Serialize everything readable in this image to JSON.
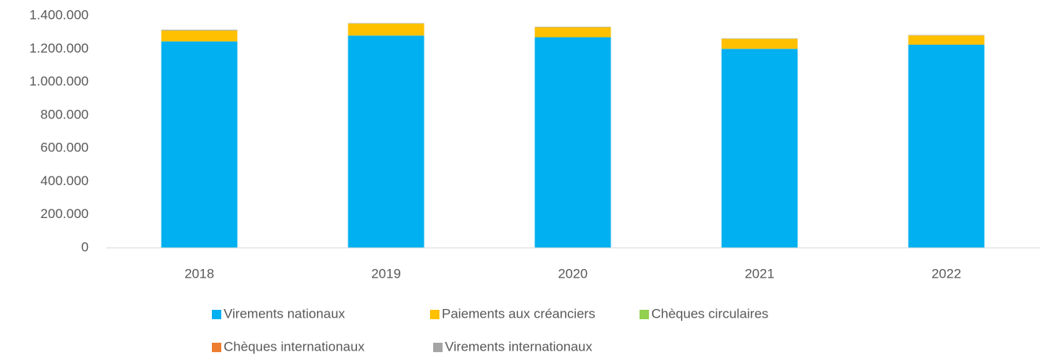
{
  "chart_data": {
    "type": "bar",
    "stacked": true,
    "categories": [
      "2018",
      "2019",
      "2020",
      "2021",
      "2022"
    ],
    "series": [
      {
        "name": "Virements nationaux",
        "color": "#00b0f0",
        "values": [
          1245000,
          1280000,
          1270000,
          1200000,
          1225000
        ]
      },
      {
        "name": "Paiements aux créanciers",
        "color": "#ffc000",
        "values": [
          65000,
          72000,
          60000,
          60000,
          55000
        ]
      },
      {
        "name": "Chèques circulaires",
        "color": "#92d050",
        "values": [
          1000,
          1000,
          1000,
          1000,
          1000
        ]
      },
      {
        "name": "Chèques internationaux",
        "color": "#ed7d31",
        "values": [
          500,
          500,
          500,
          500,
          500
        ]
      },
      {
        "name": "Virements internationaux",
        "color": "#a5a5a5",
        "values": [
          4000,
          2000,
          2000,
          2000,
          2000
        ]
      }
    ],
    "ylim": [
      0,
      1400000
    ],
    "yticks": [
      0,
      {
        "value": 200000,
        "label": "200.000"
      },
      {
        "value": 400000,
        "label": "400.000"
      },
      {
        "value": 600000,
        "label": "600.000"
      },
      {
        "value": 800000,
        "label": "800.000"
      },
      {
        "value": 1000000,
        "label": "1.000.000"
      },
      {
        "value": 1200000,
        "label": "1.200.000"
      },
      {
        "value": 1400000,
        "label": "1.400.000"
      }
    ],
    "grid": false,
    "legend": "bottom"
  }
}
